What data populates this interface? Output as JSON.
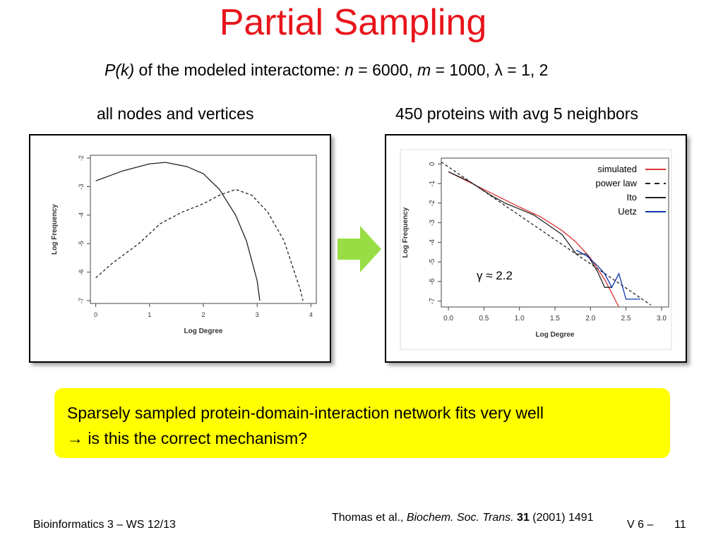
{
  "slide": {
    "title": "Partial Sampling",
    "subtitle": {
      "pk": "P(k)",
      "text1": " of the modeled interactome:  ",
      "n_var": "n",
      "n_text": " = 6000,  ",
      "m_var": "m",
      "m_text": " = 1000,  λ = 1, 2"
    },
    "left_caption": "all nodes and vertices",
    "right_caption": "450 proteins with avg 5 neighbors",
    "callout": {
      "line1": "Sparsely sampled protein-domain-interaction network fits very well",
      "line2": "→ is this the correct mechanism?"
    },
    "footer": {
      "course": "Bioinformatics 3 – WS 12/13",
      "citation_authors": "Thomas et al., ",
      "citation_journal": "Biochem. Soc. Trans.",
      "citation_volume": "31",
      "citation_rest": " (2001) 1491",
      "version": "V 6  –",
      "page": "11"
    },
    "colors": {
      "title": "#e8141b",
      "callout_bg": "#ffff00",
      "arrow": "#99dd44"
    },
    "arrow_icon": "right-arrow-icon"
  },
  "chart_data": [
    {
      "type": "line",
      "xlabel": "Log Degree",
      "ylabel": "Log Frequency",
      "xlim": [
        -0.1,
        4.1
      ],
      "ylim": [
        -7.1,
        -1.9
      ],
      "xticks": [
        "0",
        "1",
        "2",
        "3",
        "4"
      ],
      "yticks": [
        "-7",
        "-6",
        "-5",
        "-4",
        "-3",
        "-2"
      ],
      "grid": false,
      "series": [
        {
          "style": "solid",
          "x": [
            0.0,
            0.5,
            1.0,
            1.3,
            1.7,
            2.0,
            2.3,
            2.6,
            2.8,
            3.0,
            3.05
          ],
          "y": [
            -2.8,
            -2.45,
            -2.2,
            -2.15,
            -2.3,
            -2.55,
            -3.1,
            -4.0,
            -4.9,
            -6.3,
            -7.0
          ]
        },
        {
          "style": "dashed",
          "x": [
            0.0,
            0.3,
            0.8,
            1.2,
            1.6,
            2.0,
            2.3,
            2.6,
            2.9,
            3.2,
            3.5,
            3.8,
            3.85
          ],
          "y": [
            -6.2,
            -5.7,
            -5.0,
            -4.3,
            -3.9,
            -3.6,
            -3.3,
            -3.1,
            -3.3,
            -3.9,
            -4.9,
            -6.6,
            -7.0
          ]
        }
      ]
    },
    {
      "type": "line",
      "xlabel": "Log Degree",
      "ylabel": "Log Frequency",
      "xlim": [
        -0.1,
        3.1
      ],
      "ylim": [
        -7.3,
        0.3
      ],
      "xticks": [
        "0.0",
        "0.5",
        "1.0",
        "1.5",
        "2.0",
        "2.5",
        "3.0"
      ],
      "yticks": [
        "0",
        "-1",
        "-2",
        "-3",
        "-4",
        "-5",
        "-6",
        "-7"
      ],
      "grid": false,
      "legend_position": "top-right",
      "annotation": "γ ≈ 2.2",
      "series": [
        {
          "name": "simulated",
          "color": "#dd3333",
          "style": "solid",
          "x": [
            0.0,
            0.5,
            1.0,
            1.3,
            1.6,
            1.8,
            2.0,
            2.2,
            2.3,
            2.4
          ],
          "y": [
            -0.4,
            -1.3,
            -2.2,
            -2.7,
            -3.4,
            -4.0,
            -4.8,
            -5.9,
            -6.6,
            -7.3
          ]
        },
        {
          "name": "power law",
          "color": "#222222",
          "style": "dashed",
          "x": [
            -0.1,
            2.85
          ],
          "y": [
            0.1,
            -7.2
          ]
        },
        {
          "name": "Ito",
          "color": "#222222",
          "style": "solid",
          "x": [
            0.0,
            0.3,
            0.6,
            0.8,
            1.0,
            1.2,
            1.4,
            1.6,
            1.8,
            1.95,
            2.1,
            2.2,
            2.3
          ],
          "y": [
            -0.4,
            -0.9,
            -1.6,
            -2.0,
            -2.3,
            -2.6,
            -3.1,
            -3.6,
            -4.6,
            -4.6,
            -5.5,
            -6.3,
            -6.3
          ]
        },
        {
          "name": "Uetz",
          "color": "#1133aa",
          "style": "solid",
          "x": [
            1.8,
            1.95,
            2.1,
            2.2,
            2.3,
            2.4,
            2.5,
            2.6,
            2.7
          ],
          "y": [
            -4.4,
            -4.7,
            -5.2,
            -5.6,
            -6.3,
            -5.6,
            -6.9,
            -6.9,
            -6.9
          ]
        }
      ]
    }
  ]
}
